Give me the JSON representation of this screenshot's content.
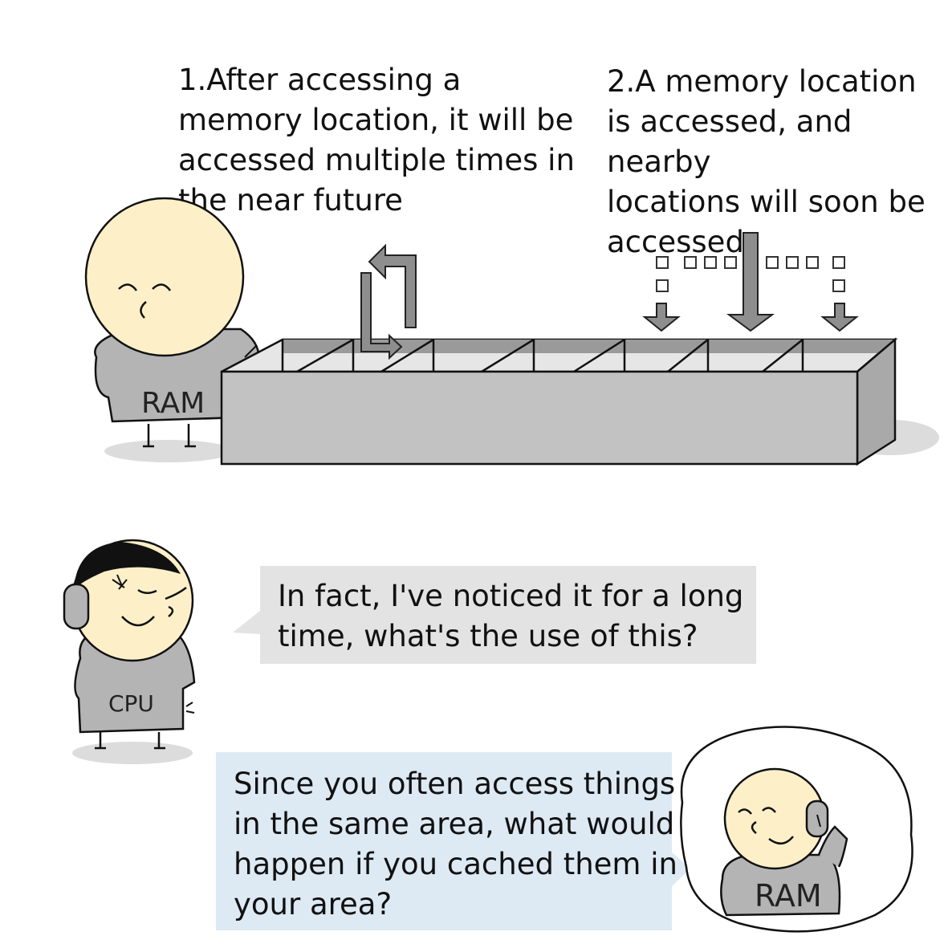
{
  "captions": {
    "temporal": [
      "1.After accessing a",
      "memory location, it will be",
      "accessed multiple times in",
      "the near future"
    ],
    "spatial": [
      "2.A memory location",
      "is accessed, and nearby",
      "locations will soon be",
      "accessed"
    ]
  },
  "characters": {
    "ram_top_label": "RAM",
    "cpu_label": "CPU",
    "ram_bottom_label": "RAM"
  },
  "dialogue": {
    "cpu_line": [
      "In fact, I've noticed it for a long",
      "time, what's the use of this?"
    ],
    "ram_line": [
      "Since you often access things",
      "in the same area, what would",
      "happen if you cached them in",
      "your area?"
    ]
  },
  "colors": {
    "skin": "#fdf0c8",
    "shirt": "#b4b4b4",
    "box_front": "#c2c2c2",
    "box_side": "#a9a9a9",
    "cpu_bubble": "#e3e3e3",
    "ram_bubble": "#dde9f3",
    "shadow": "#dcdcdc"
  }
}
